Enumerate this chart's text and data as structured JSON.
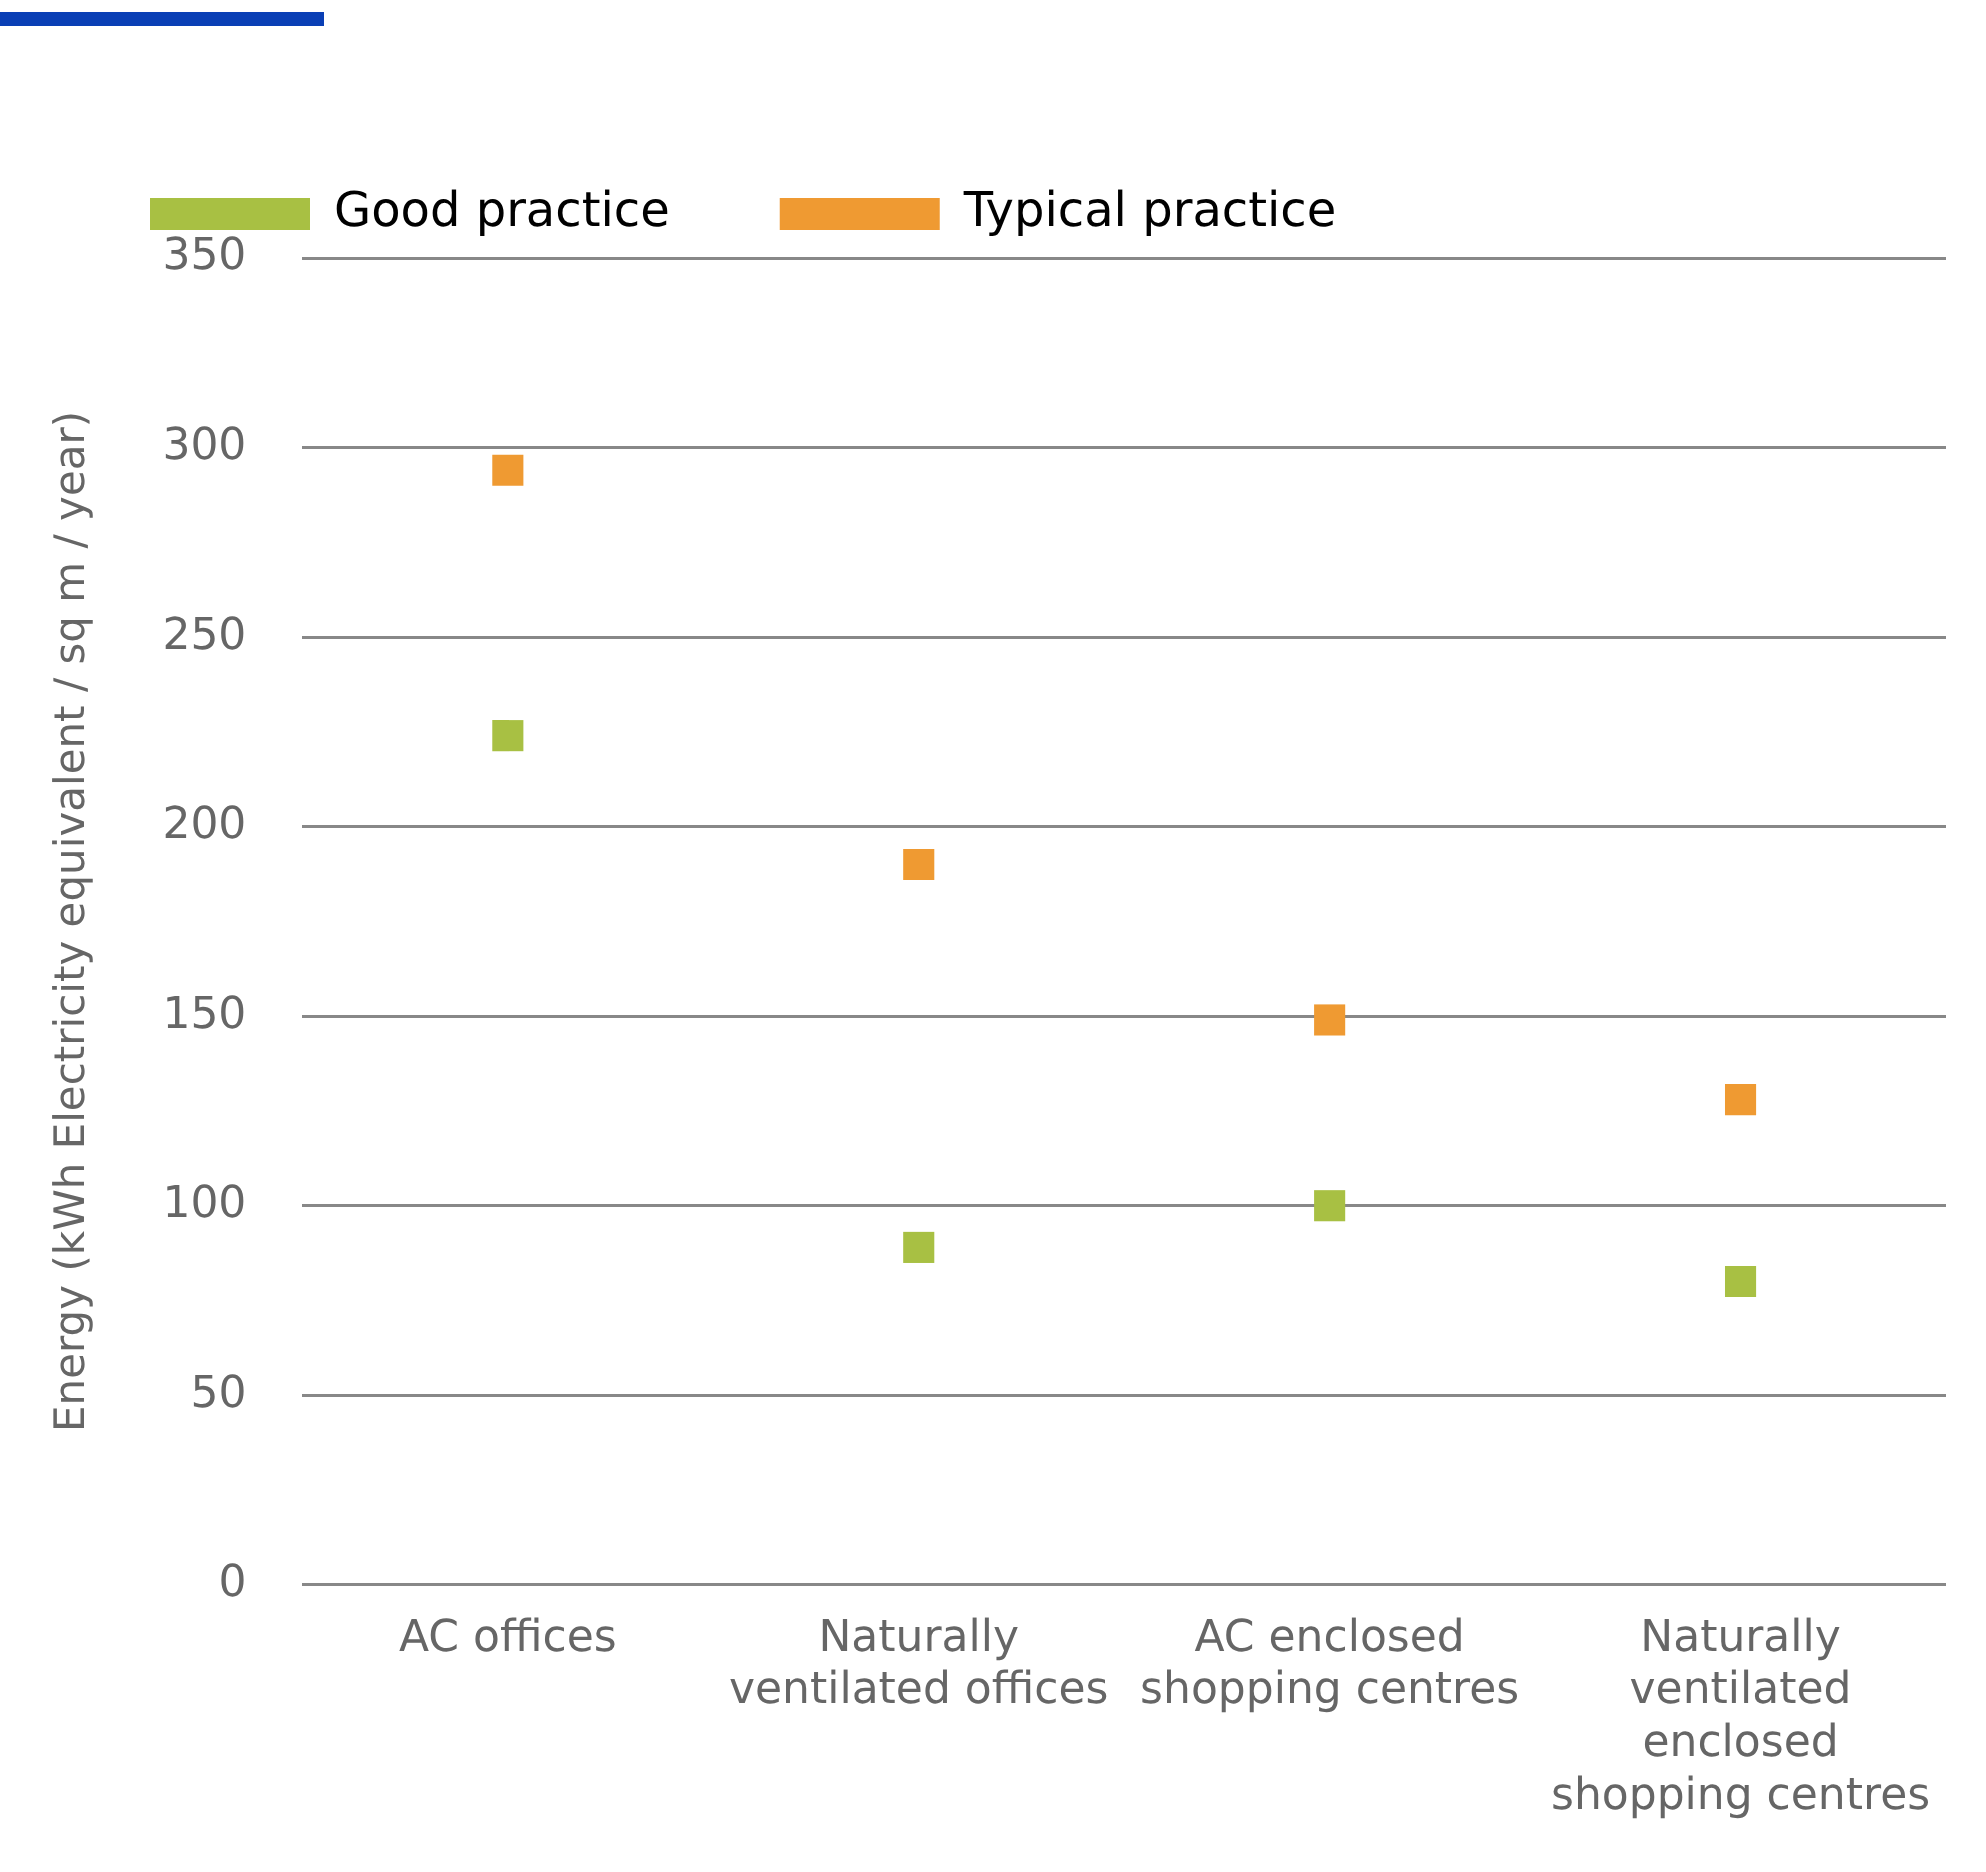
{
  "chart_data": {
    "type": "scatter",
    "ylabel": "Energy (kWh Electricity equivalent / sq m / year)",
    "categories": [
      "AC offices",
      "Naturally ventilated offices",
      "AC enclosed shopping centres",
      "Naturally ventilated enclosed shopping centres"
    ],
    "series": [
      {
        "name": "Good practice",
        "color": "#a8c043",
        "values": [
          224,
          89,
          100,
          80
        ]
      },
      {
        "name": "Typical practice",
        "color": "#ef9a32",
        "values": [
          294,
          190,
          149,
          128
        ]
      }
    ],
    "marker": "square",
    "ylim": [
      0,
      350
    ],
    "yticks": [
      0,
      50,
      100,
      150,
      200,
      250,
      300,
      350
    ],
    "grid": "y",
    "legend": "top left"
  }
}
